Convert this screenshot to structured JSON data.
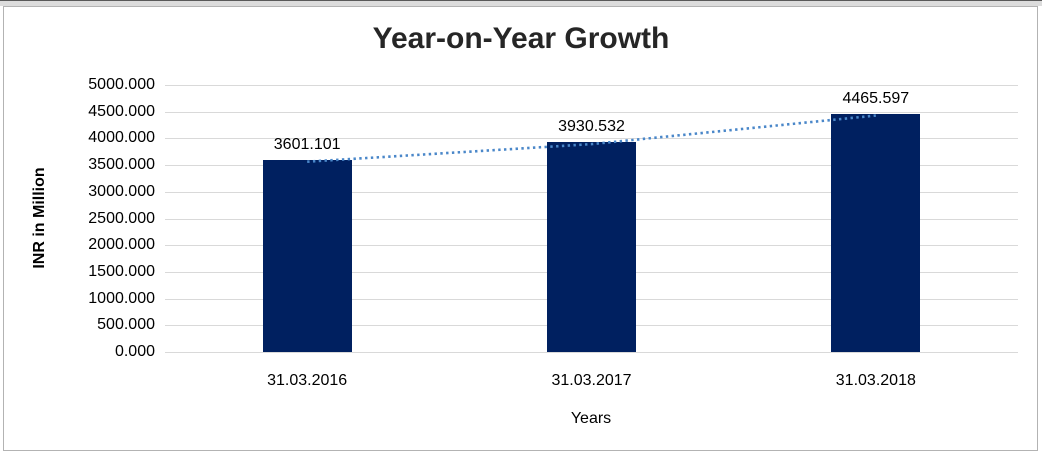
{
  "chart_data": {
    "type": "bar",
    "title": "Year-on-Year Growth",
    "categories": [
      "31.03.2016",
      "31.03.2017",
      "31.03.2018"
    ],
    "values": [
      3601.101,
      3930.532,
      4465.597
    ],
    "data_labels": [
      "3601.101",
      "3930.532",
      "4465.597"
    ],
    "xlabel": "Years",
    "ylabel": "INR in Million",
    "ylim": [
      0,
      5000
    ],
    "ytick_step": 500,
    "ytick_labels": [
      "0.000",
      "500.000",
      "1000.000",
      "1500.000",
      "2000.000",
      "2500.000",
      "3000.000",
      "3500.000",
      "4000.000",
      "4500.000",
      "5000.000"
    ],
    "grid": true,
    "legend_position": "none",
    "bar_color": "#002060",
    "trendline": {
      "style": "dotted",
      "color": "#4a87c9"
    },
    "gridline_color": "#d9d9d9",
    "label_color": "#000000",
    "title_color": "#262626"
  }
}
